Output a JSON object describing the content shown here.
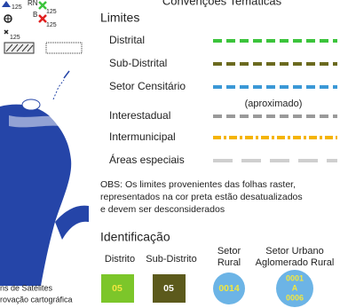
{
  "title": "Convenções Temáticas",
  "map_symbols": [
    "125",
    "RN",
    "125",
    "B",
    "125",
    "125"
  ],
  "limites": {
    "heading": "Limites",
    "note": "(aproximado)",
    "items": [
      {
        "label": "Distrital",
        "color": "#3cc43c",
        "dash": "dash"
      },
      {
        "label": "Sub-Distrital",
        "color": "#6b6a1f",
        "dash": "dash"
      },
      {
        "label": "Setor Censitário",
        "color": "#3b98d6",
        "dash": "dash"
      },
      {
        "label": "Interestadual",
        "color": "#9a9a9a",
        "dash": "dash"
      },
      {
        "label": "Intermunicipal",
        "color": "#f5b400",
        "dash": "dashdot"
      },
      {
        "label": "Áreas especiais",
        "color": "#cfcfcf",
        "dash": "long"
      }
    ]
  },
  "obs": [
    "OBS: Os limites provenientes das folhas raster,",
    "representados na cor preta estão desatualizados",
    "e devem ser desconsiderados"
  ],
  "identificacao": {
    "heading": "Identificação",
    "items": [
      {
        "label": [
          "Distrito"
        ],
        "code": [
          "05"
        ],
        "shape": "square",
        "fill": "#7cc62a",
        "text_color": "#f2e640"
      },
      {
        "label": [
          "Sub-Distrito"
        ],
        "code": [
          "05"
        ],
        "shape": "square",
        "fill": "#5c5a1c",
        "text_color": "#ffffff"
      },
      {
        "label": [
          "Setor",
          "Rural"
        ],
        "code": [
          "0014"
        ],
        "shape": "circle",
        "fill": "#6cb4e6",
        "text_color": "#f2e640"
      },
      {
        "label": [
          "Setor Urbano",
          "Aglomerado Rural"
        ],
        "code": [
          "0001",
          "A",
          "0006"
        ],
        "shape": "circle",
        "fill": "#6cb4e6",
        "text_color": "#f2e640"
      }
    ]
  },
  "footer_left": [
    "ns de Satélites",
    "rovação cartográfica"
  ]
}
